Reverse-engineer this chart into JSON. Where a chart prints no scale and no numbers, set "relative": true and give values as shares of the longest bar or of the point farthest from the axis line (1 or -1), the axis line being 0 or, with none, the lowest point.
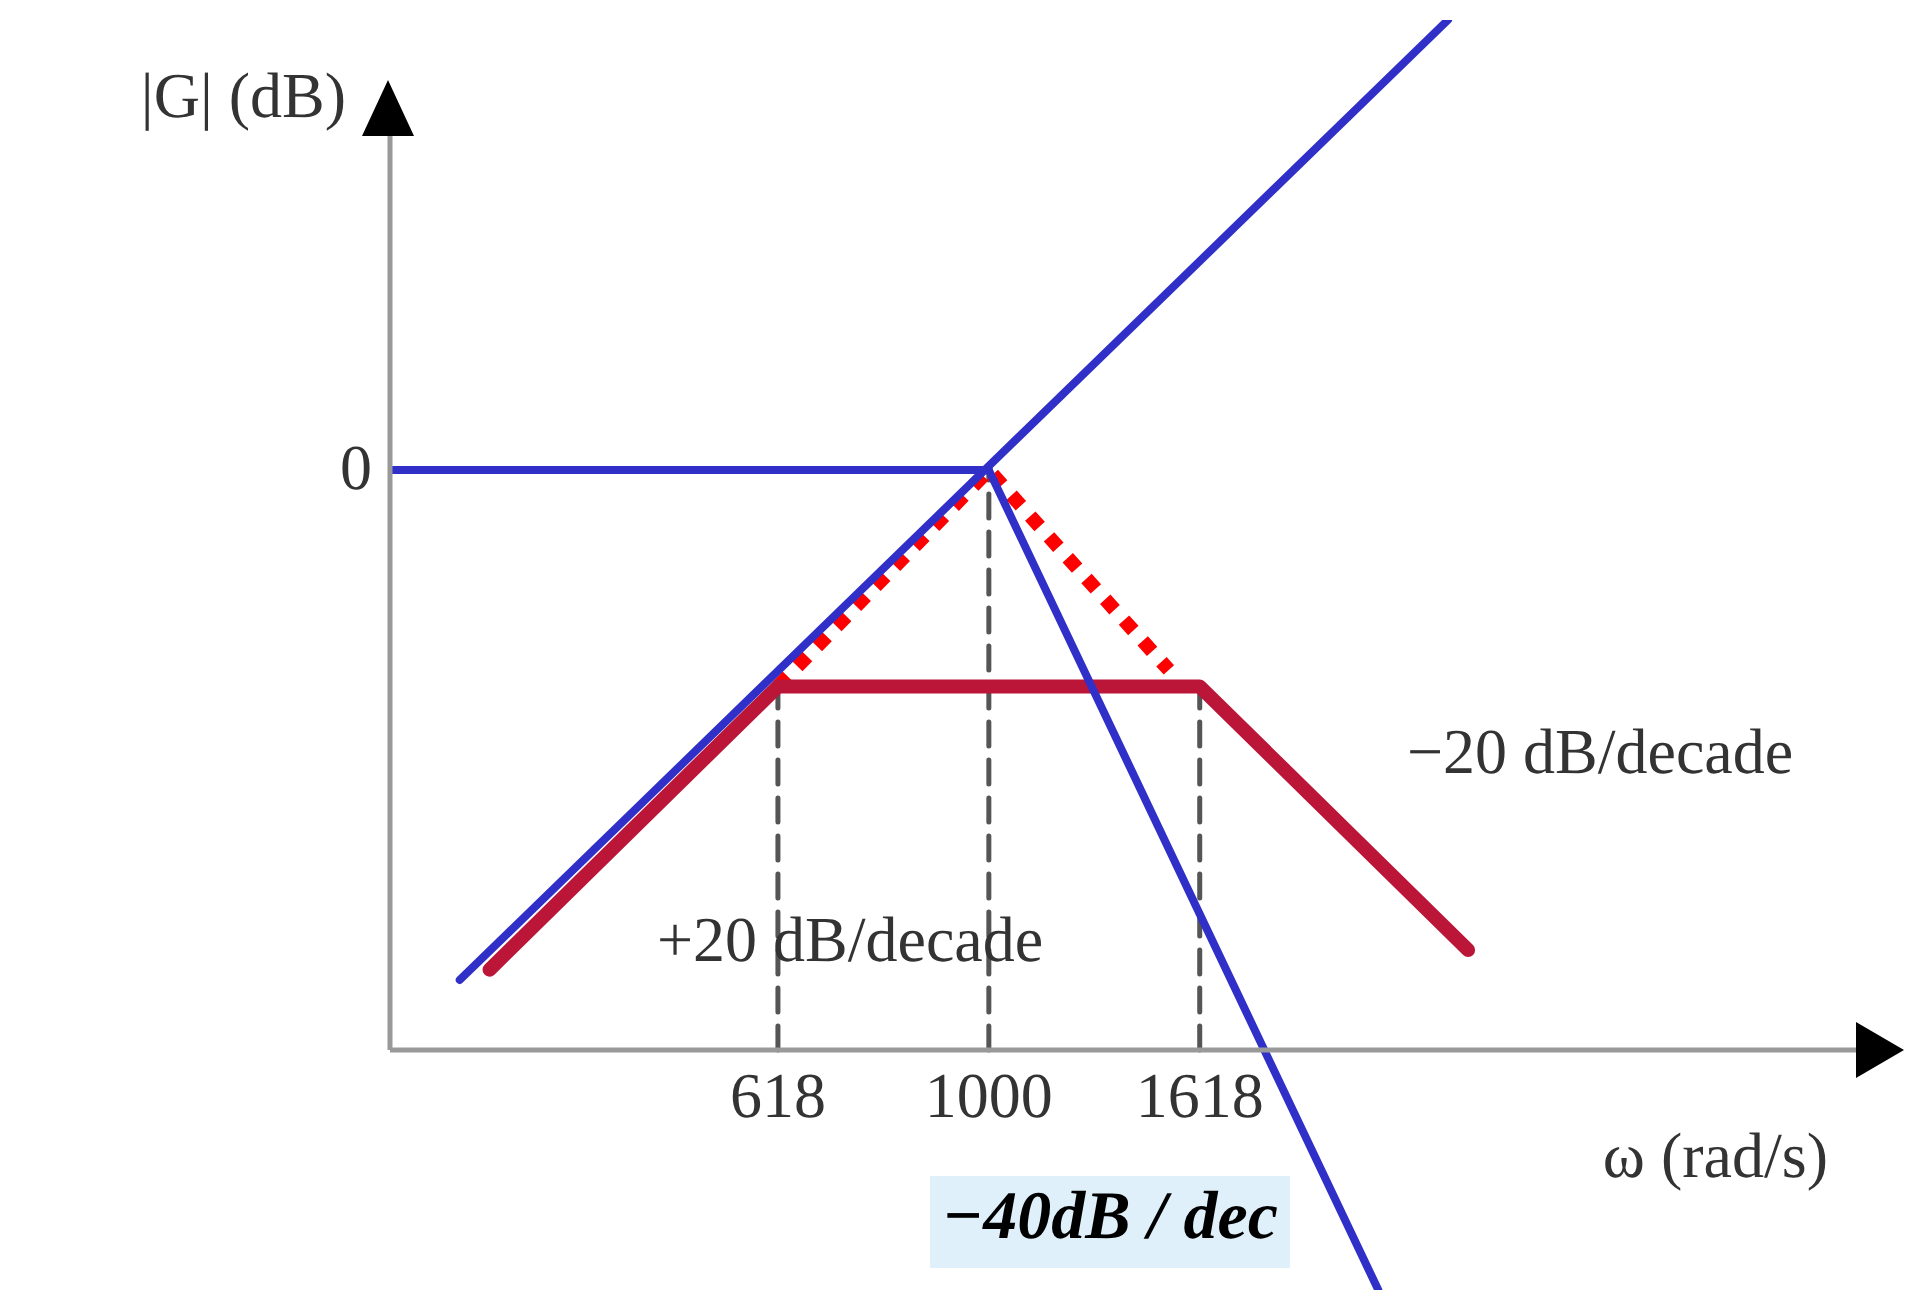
{
  "chart_data": {
    "type": "line",
    "relative": true,
    "log": "x",
    "xlabel": "ω (rad/s)",
    "ylabel": "|G| (dB)",
    "xlim": [
      255,
      7300
    ],
    "xticks": [
      618,
      1000,
      1618
    ],
    "grid": false,
    "marker": "none",
    "series": [
      {
        "x": [
          255,
          1000
        ],
        "values": [
          0.563,
          0.563
        ],
        "color": "#3030c8",
        "line_style": "solid"
      },
      {
        "x": [
          299,
          2851
        ],
        "values": [
          0.068,
          1
        ],
        "color": "#3030c8",
        "line_style": "solid"
      },
      {
        "x": [
          1000,
          2432
        ],
        "values": [
          0.563,
          -0.233
        ],
        "color": "#3030c8",
        "line_style": "solid"
      },
      {
        "x": [
          320,
          618,
          1618,
          2985
        ],
        "values": [
          0.078,
          0.353,
          0.353,
          0.097
        ],
        "color": "#bb1538",
        "line_style": "solid"
      },
      {
        "x": [
          618,
          1000,
          1508
        ],
        "values": [
          0.353,
          0.563,
          0.369
        ],
        "color": "#ff0000",
        "line_style": "dotted"
      },
      {
        "x": [
          618,
          618
        ],
        "values": [
          0,
          0.353
        ],
        "color": "#555555",
        "line_style": "dashed"
      },
      {
        "x": [
          1000,
          1000
        ],
        "values": [
          0,
          0.563
        ],
        "color": "#555555",
        "line_style": "dashed"
      },
      {
        "x": [
          1618,
          1618
        ],
        "values": [
          0,
          0.353
        ],
        "color": "#555555",
        "line_style": "dashed"
      }
    ],
    "annotations": [
      "0",
      "+20 dB/decade",
      "−20 dB/decade",
      "−40dB / dec"
    ]
  }
}
